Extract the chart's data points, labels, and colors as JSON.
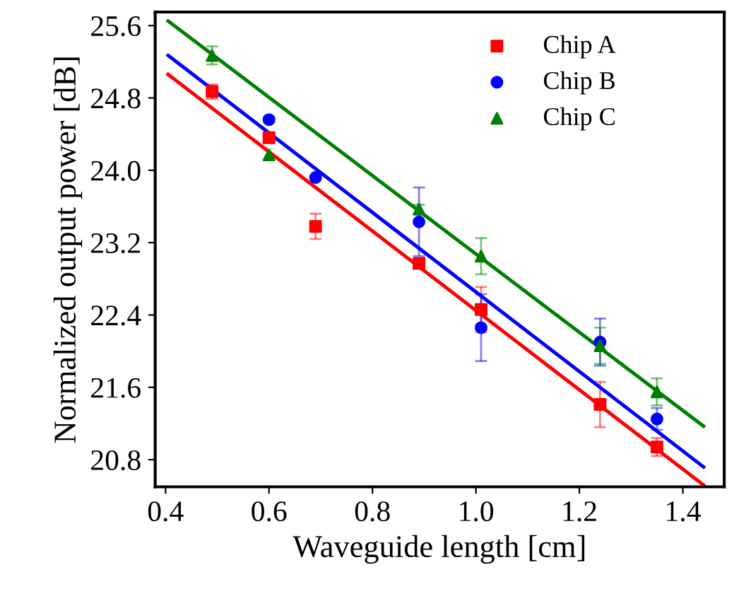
{
  "chart_data": {
    "type": "scatter",
    "xlabel": "Waveguide length [cm]",
    "ylabel": "Normalized output power [dB]",
    "xlim": [
      0.38,
      1.48
    ],
    "ylim": [
      20.5,
      25.75
    ],
    "xticks": [
      0.4,
      0.6,
      0.8,
      {
        "value": 1,
        "label": "1.0"
      },
      1.2,
      1.4
    ],
    "yticks": [
      20.8,
      21.6,
      22.4,
      23.2,
      {
        "value": 24,
        "label": "24.0"
      },
      24.8,
      25.6
    ],
    "grid": false,
    "legend": "top right",
    "series": [
      {
        "name": "Chip A",
        "color": "#ff0000",
        "marker": "square",
        "x": [
          0.49,
          0.6,
          0.69,
          0.89,
          1.01,
          1.24,
          1.35
        ],
        "values": [
          24.87,
          24.36,
          23.38,
          22.97,
          22.46,
          21.41,
          20.94
        ],
        "errors": [
          0.08,
          0.05,
          0.14,
          0.05,
          0.25,
          0.25,
          0.1
        ]
      },
      {
        "name": "Chip B",
        "color": "#0000ff",
        "marker": "circle",
        "x": [
          0.6,
          0.69,
          0.89,
          1.01,
          1.24,
          1.35
        ],
        "values": [
          24.56,
          23.92,
          23.43,
          22.26,
          22.1,
          21.25
        ],
        "errors": [
          0.03,
          null,
          0.38,
          0.37,
          0.26,
          0.12
        ]
      },
      {
        "name": "Chip C",
        "color": "#008000",
        "marker": "triangle",
        "x": [
          0.49,
          0.6,
          0.89,
          1.01,
          1.24,
          1.35
        ],
        "values": [
          25.27,
          24.17,
          23.57,
          23.05,
          22.06,
          21.55
        ],
        "errors": [
          0.1,
          null,
          0.05,
          0.2,
          0.2,
          0.15
        ]
      },
      {
        "type": "line",
        "color": "#ff0000",
        "marker": "none",
        "x": [
          0.405,
          1.44
        ],
        "values": [
          25.06,
          20.52
        ]
      },
      {
        "type": "line",
        "color": "#0000ff",
        "marker": "none",
        "x": [
          0.405,
          1.44
        ],
        "values": [
          25.27,
          20.72
        ]
      },
      {
        "type": "line",
        "color": "#008000",
        "marker": "none",
        "x": [
          0.405,
          1.44
        ],
        "values": [
          25.65,
          21.17
        ]
      }
    ]
  }
}
